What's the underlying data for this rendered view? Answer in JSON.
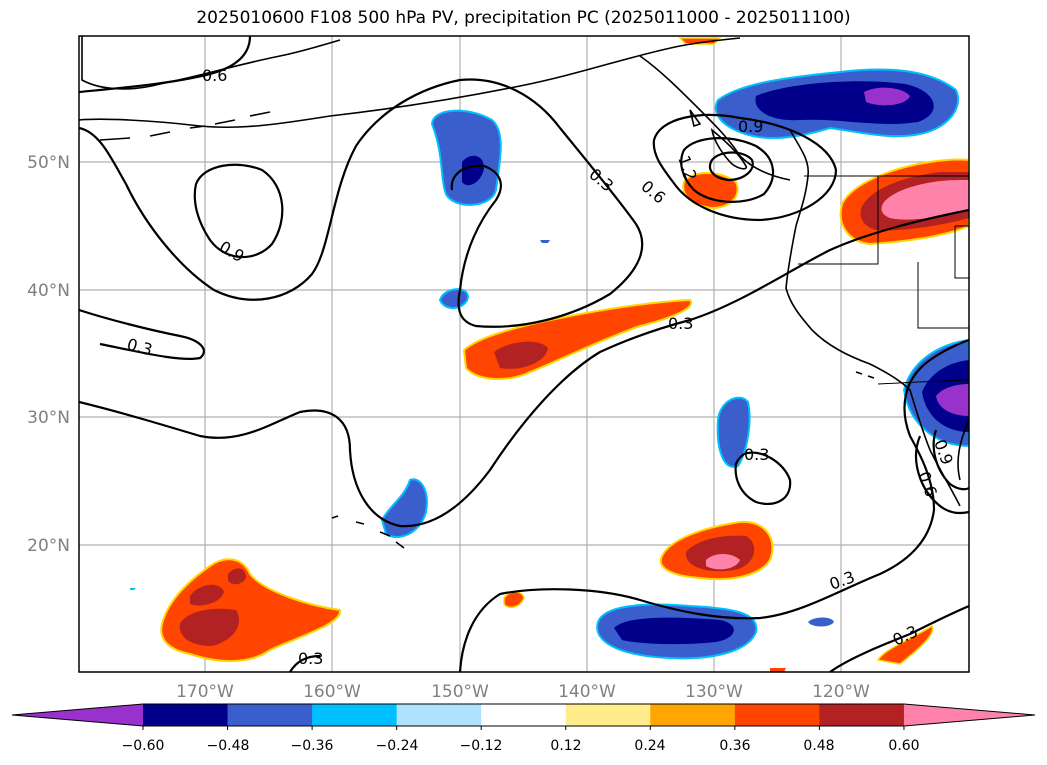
{
  "title": "2025010600 F108 500 hPa PV, precipitation PC (2025011000 - 2025011100)",
  "map": {
    "lon_labels": [
      "170°W",
      "160°W",
      "150°W",
      "140°W",
      "130°W",
      "120°W"
    ],
    "lat_labels": [
      "50°N",
      "40°N",
      "30°N",
      "20°N"
    ],
    "contour_labels": [
      "0.6",
      "0.9",
      "0.3",
      "0.3",
      "0.6",
      "1.2",
      "0.9",
      "0.3",
      "0.3",
      "0.3",
      "0.6",
      "0.9",
      "0.3",
      "0.3"
    ]
  },
  "colorbar": {
    "colors": [
      "#9932cc",
      "#00008b",
      "#3a5fcd",
      "#00bfff",
      "#b0e2ff",
      "#ffffff",
      "#ffec8b",
      "#ffa500",
      "#ff4500",
      "#b22222",
      "#ff82ab"
    ],
    "tick_labels": [
      "−0.60",
      "−0.48",
      "−0.36",
      "−0.24",
      "−0.12",
      "0.12",
      "0.24",
      "0.36",
      "0.48",
      "0.60"
    ]
  }
}
